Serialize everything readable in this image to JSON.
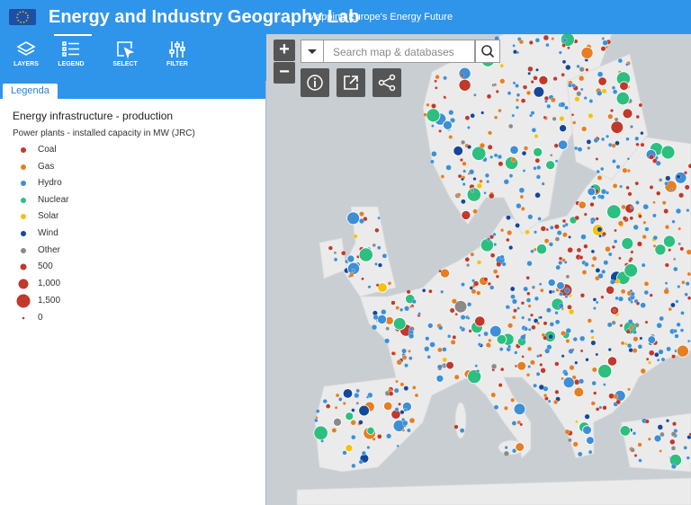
{
  "header": {
    "title": "Energy and Industry Geography Lab",
    "subtitle": "Mapping Europe's Energy Future"
  },
  "toolbar": [
    {
      "label": "LAYERS"
    },
    {
      "label": "LEGEND"
    },
    {
      "label": "SELECT"
    },
    {
      "label": "FILTER"
    }
  ],
  "panel": {
    "tab": "Legenda",
    "title": "Energy infrastructure - production",
    "subtitle": "Power plants - installed capacity in MW (JRC)",
    "categories": [
      {
        "label": "Coal",
        "color": "#c0392b"
      },
      {
        "label": "Gas",
        "color": "#e67e22"
      },
      {
        "label": "Hydro",
        "color": "#3d8fd6"
      },
      {
        "label": "Nuclear",
        "color": "#2cbf7f"
      },
      {
        "label": "Solar",
        "color": "#f4c20d"
      },
      {
        "label": "Wind",
        "color": "#14479a"
      },
      {
        "label": "Other",
        "color": "#8a8a8a"
      }
    ],
    "sizes": [
      {
        "label": "500"
      },
      {
        "label": "1,000"
      },
      {
        "label": "1,500"
      },
      {
        "label": "0"
      }
    ]
  },
  "map": {
    "zoom_in": "+",
    "zoom_out": "−",
    "search_placeholder": "Search map & databases"
  }
}
